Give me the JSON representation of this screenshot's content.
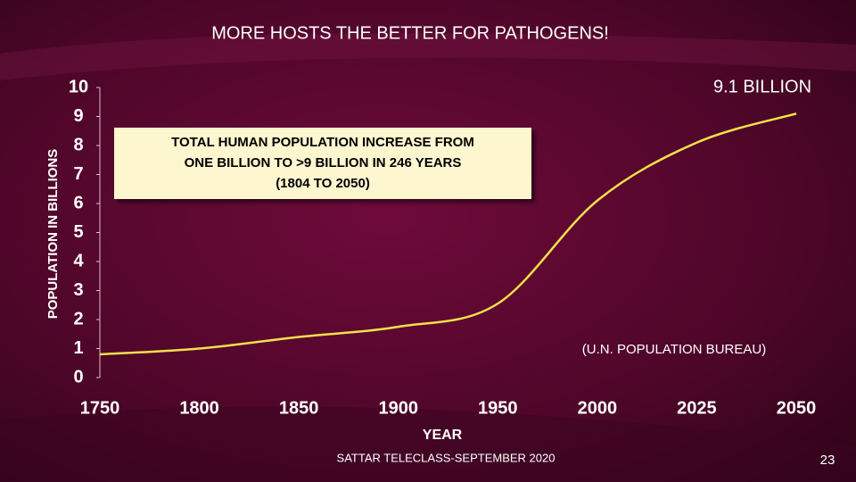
{
  "chart_data": {
    "type": "line",
    "title": "MORE HOSTS THE BETTER FOR PATHOGENS!",
    "y_label": "POPULATION IN BILLIONS",
    "x_label": "YEAR",
    "categories": [
      "1750",
      "1800",
      "1850",
      "1900",
      "1950",
      "2000",
      "2025",
      "2050"
    ],
    "values": [
      0.8,
      1.0,
      1.4,
      1.75,
      2.55,
      6.1,
      8.1,
      9.1
    ],
    "color": "#f3e04a",
    "ylim": [
      0,
      10
    ],
    "yticks": [
      0,
      1,
      2,
      3,
      4,
      5,
      6,
      7,
      8,
      9,
      10
    ],
    "end_label": "9.1 BILLION",
    "box_text": [
      "TOTAL HUMAN POPULATION INCREASE FROM",
      "ONE BILLION TO >9 BILLION IN 246 YEARS",
      "(1804 TO 2050)"
    ],
    "source": "(U.N. POPULATION BUREAU)"
  },
  "footer": "SATTAR TELECLASS-SEPTEMBER 2020",
  "slide_number": "23"
}
